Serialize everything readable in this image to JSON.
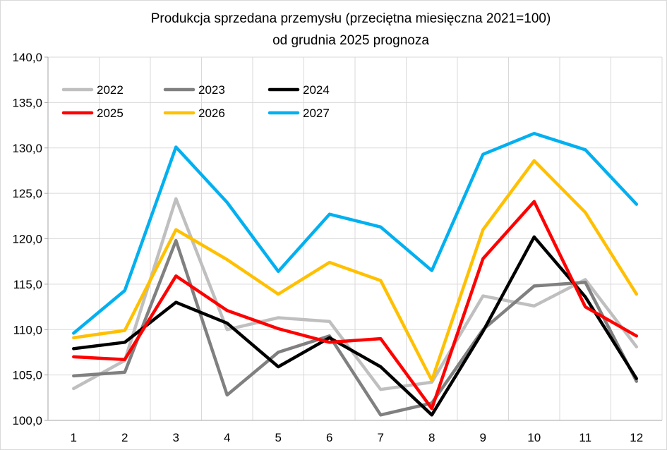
{
  "chart_data": {
    "type": "line",
    "title": "Produkcja sprzedana przemysłu (przeciętna miesięczna 2021=100)",
    "subtitle": "od grudnia 2025 prognoza",
    "xlabel": "",
    "ylabel": "",
    "categories": [
      "1",
      "2",
      "3",
      "4",
      "5",
      "6",
      "7",
      "8",
      "9",
      "10",
      "11",
      "12"
    ],
    "ylim": [
      100,
      140
    ],
    "yticks": [
      "100,0",
      "105,0",
      "110,0",
      "115,0",
      "120,0",
      "125,0",
      "130,0",
      "135,0",
      "140,0"
    ],
    "grid": true,
    "legend_position": "top-left",
    "series": [
      {
        "name": "2022",
        "color": "#bfbfbf",
        "values": [
          103.5,
          106.6,
          124.4,
          110.0,
          111.3,
          110.9,
          103.4,
          104.2,
          113.7,
          112.6,
          115.5,
          108.1
        ]
      },
      {
        "name": "2023",
        "color": "#808080",
        "values": [
          104.9,
          105.3,
          119.8,
          102.8,
          107.5,
          109.3,
          100.6,
          101.9,
          110.0,
          114.8,
          115.2,
          104.3
        ]
      },
      {
        "name": "2024",
        "color": "#000000",
        "values": [
          107.9,
          108.6,
          113.0,
          110.7,
          105.9,
          109.1,
          105.9,
          100.6,
          109.8,
          120.2,
          113.6,
          104.6
        ]
      },
      {
        "name": "2025",
        "color": "#ff0000",
        "values": [
          107.0,
          106.7,
          115.9,
          112.1,
          110.1,
          108.6,
          109.0,
          101.3,
          117.8,
          124.1,
          112.5,
          109.3
        ]
      },
      {
        "name": "2026",
        "color": "#ffc000",
        "values": [
          109.1,
          109.9,
          121.0,
          117.7,
          113.9,
          117.4,
          115.4,
          104.4,
          121.0,
          128.6,
          122.9,
          113.9
        ]
      },
      {
        "name": "2027",
        "color": "#00b0f0",
        "values": [
          109.6,
          114.3,
          130.1,
          124.0,
          116.4,
          122.7,
          121.3,
          116.5,
          129.3,
          131.6,
          129.8,
          123.8
        ]
      }
    ]
  }
}
